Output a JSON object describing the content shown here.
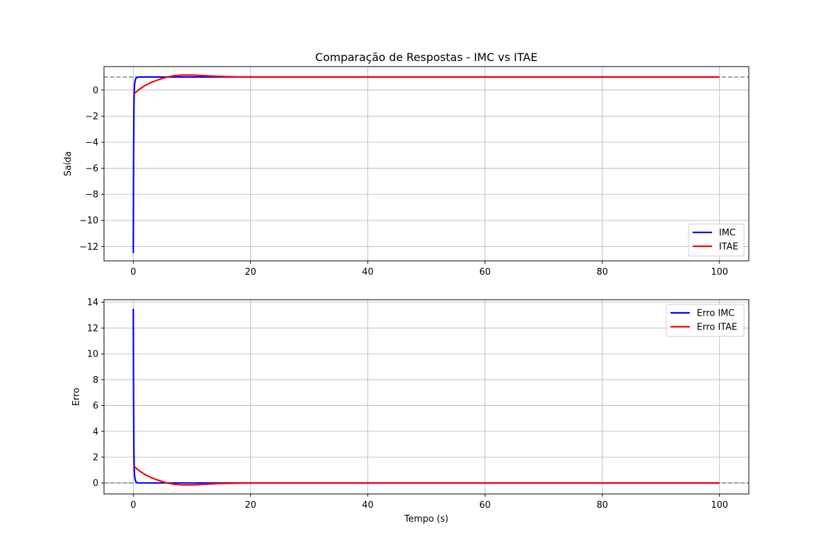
{
  "chart_data": [
    {
      "type": "line",
      "title": "Comparação de Respostas - IMC vs ITAE",
      "xlabel": "",
      "ylabel": "Saída",
      "xlim": [
        -5,
        105
      ],
      "ylim": [
        -13.1,
        1.8
      ],
      "xticks": [
        0,
        20,
        40,
        60,
        80,
        100
      ],
      "yticks": [
        0,
        -2,
        -4,
        -6,
        -8,
        -10,
        -12
      ],
      "xtick_labels": [
        "0",
        "20",
        "40",
        "60",
        "80",
        "100"
      ],
      "ytick_labels": [
        "0",
        "−2",
        "−4",
        "−6",
        "−8",
        "−10",
        "−12"
      ],
      "grid": true,
      "legend_position": "lower-right",
      "reference_line": {
        "y": 1,
        "style": "dashed",
        "color": "#808080"
      },
      "series": [
        {
          "name": "IMC",
          "color": "#0000ff",
          "x": [
            0,
            0.05,
            0.1,
            0.15,
            0.2,
            0.3,
            0.4,
            0.5,
            0.6,
            0.8,
            1.0,
            1.5,
            2,
            3,
            5,
            10,
            20,
            40,
            60,
            80,
            100
          ],
          "y": [
            -12.5,
            -5.0,
            -1.5,
            -0.2,
            0.35,
            0.7,
            0.86,
            0.93,
            0.97,
            0.99,
            1.0,
            1.0,
            1.0,
            1.0,
            1.0,
            1.0,
            1.0,
            1.0,
            1.0,
            1.0,
            1.0
          ]
        },
        {
          "name": "ITAE",
          "color": "#ff0000",
          "x": [
            0,
            0.5,
            1,
            1.5,
            2,
            3,
            4,
            5,
            6,
            7,
            8,
            9,
            10,
            11,
            12,
            14,
            16,
            18,
            20,
            25,
            30,
            40,
            60,
            80,
            100
          ],
          "y": [
            -0.35,
            -0.15,
            0.05,
            0.2,
            0.35,
            0.57,
            0.75,
            0.9,
            1.02,
            1.1,
            1.14,
            1.15,
            1.15,
            1.13,
            1.1,
            1.06,
            1.03,
            1.01,
            1.0,
            1.0,
            1.0,
            1.0,
            1.0,
            1.0,
            1.0
          ]
        }
      ]
    },
    {
      "type": "line",
      "title": "",
      "xlabel": "Tempo (s)",
      "ylabel": "Erro",
      "xlim": [
        -5,
        105
      ],
      "ylim": [
        -0.85,
        14.2
      ],
      "xticks": [
        0,
        20,
        40,
        60,
        80,
        100
      ],
      "yticks": [
        0,
        2,
        4,
        6,
        8,
        10,
        12,
        14
      ],
      "xtick_labels": [
        "0",
        "20",
        "40",
        "60",
        "80",
        "100"
      ],
      "ytick_labels": [
        "0",
        "2",
        "4",
        "6",
        "8",
        "10",
        "12",
        "14"
      ],
      "grid": true,
      "legend_position": "upper-right",
      "reference_line": {
        "y": 0,
        "style": "dashed",
        "color": "#808080"
      },
      "series": [
        {
          "name": "Erro IMC",
          "color": "#0000ff",
          "x": [
            0,
            0.05,
            0.1,
            0.15,
            0.2,
            0.3,
            0.4,
            0.5,
            0.6,
            0.8,
            1.0,
            1.5,
            2,
            3,
            5,
            10,
            20,
            40,
            60,
            80,
            100
          ],
          "y": [
            13.5,
            6.0,
            2.5,
            1.2,
            0.65,
            0.3,
            0.14,
            0.07,
            0.03,
            0.01,
            0.0,
            0.0,
            0.0,
            0.0,
            0.0,
            0.0,
            0.0,
            0.0,
            0.0,
            0.0,
            0.0
          ]
        },
        {
          "name": "Erro ITAE",
          "color": "#ff0000",
          "x": [
            0,
            0.5,
            1,
            1.5,
            2,
            3,
            4,
            5,
            6,
            7,
            8,
            9,
            10,
            11,
            12,
            14,
            16,
            18,
            20,
            25,
            30,
            40,
            60,
            80,
            100
          ],
          "y": [
            1.35,
            1.15,
            0.95,
            0.8,
            0.65,
            0.43,
            0.25,
            0.1,
            -0.02,
            -0.1,
            -0.14,
            -0.15,
            -0.15,
            -0.13,
            -0.1,
            -0.06,
            -0.03,
            -0.01,
            0.0,
            0.0,
            0.0,
            0.0,
            0.0,
            0.0,
            0.0
          ]
        }
      ]
    }
  ]
}
